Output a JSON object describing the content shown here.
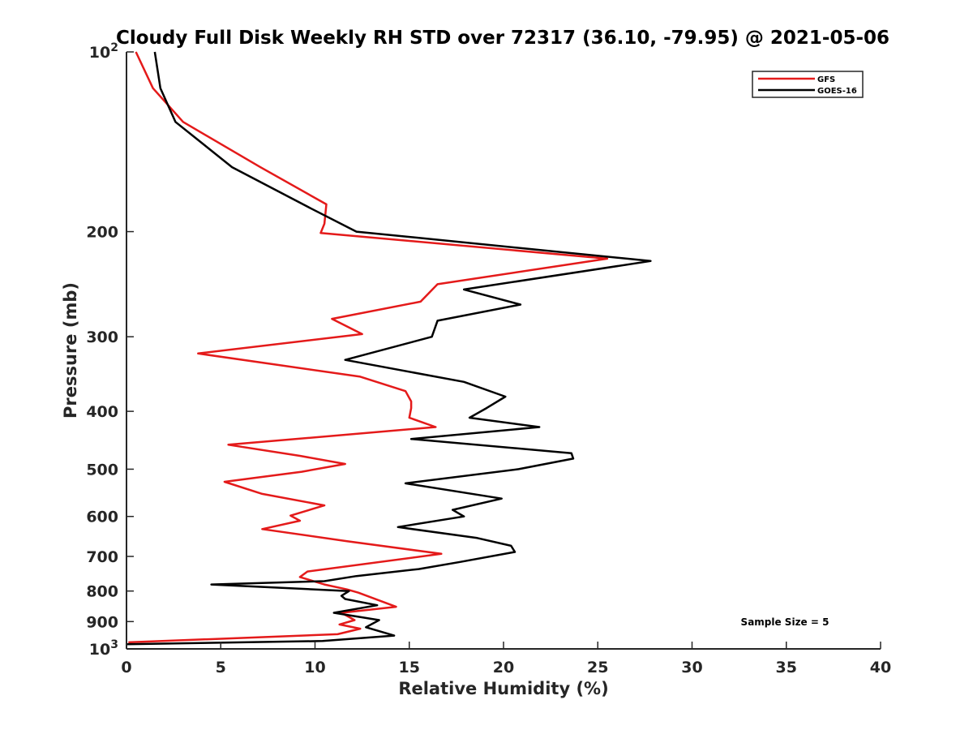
{
  "chart_data": {
    "type": "line",
    "title": "Cloudy Full Disk Weekly RH STD over 72317 (36.10, -79.95) @ 2021-05-06",
    "xlabel": "Relative Humidity (%)",
    "ylabel": "Pressure (mb)",
    "xlim": [
      0,
      40
    ],
    "ylim": [
      100,
      1000
    ],
    "y_scale": "log",
    "y_reversed": true,
    "grid": false,
    "legend_position": "top-right",
    "x_ticks": [
      "0",
      "5",
      "10",
      "15",
      "20",
      "25",
      "30",
      "35",
      "40"
    ],
    "y_ticks": [
      {
        "value": 100,
        "label": "10",
        "sup": "2"
      },
      {
        "value": 200,
        "label": "200"
      },
      {
        "value": 300,
        "label": "300"
      },
      {
        "value": 400,
        "label": "400"
      },
      {
        "value": 500,
        "label": "500"
      },
      {
        "value": 600,
        "label": "600"
      },
      {
        "value": 700,
        "label": "700"
      },
      {
        "value": 800,
        "label": "800"
      },
      {
        "value": 900,
        "label": "900"
      },
      {
        "value": 1000,
        "label": "10",
        "sup": "3"
      }
    ],
    "annotation": "Sample Size = 5",
    "series": [
      {
        "name": "GFS",
        "color": "#e41a1a",
        "x": [
          0.5,
          1.4,
          3.0,
          7.1,
          10.6,
          10.5,
          10.3,
          25.5,
          16.5,
          15.6,
          10.9,
          12.5,
          3.8,
          12.4,
          14.8,
          15.1,
          15.1,
          15.0,
          16.4,
          5.4,
          9.2,
          11.6,
          9.3,
          5.2,
          7.2,
          10.5,
          8.7,
          9.2,
          7.2,
          11.7,
          16.7,
          9.6,
          9.2,
          10.5,
          11.7,
          12.3,
          14.3,
          11.4,
          12.1,
          11.3,
          12.4,
          11.2,
          0.1
        ],
        "y": [
          100,
          115,
          131,
          156,
          180,
          194,
          201,
          222,
          245,
          262,
          280,
          297,
          320,
          350,
          370,
          385,
          395,
          410,
          425,
          455,
          475,
          490,
          505,
          525,
          550,
          575,
          598,
          610,
          630,
          660,
          693,
          742,
          758,
          780,
          795,
          805,
          850,
          870,
          895,
          910,
          925,
          945,
          975
        ]
      },
      {
        "name": "GOES-16",
        "color": "#000000",
        "x": [
          1.5,
          1.8,
          2.6,
          5.6,
          9.8,
          12.2,
          27.8,
          17.9,
          20.9,
          16.5,
          16.2,
          11.6,
          17.9,
          20.1,
          19.1,
          18.2,
          21.9,
          15.1,
          23.6,
          23.7,
          20.8,
          14.8,
          19.9,
          17.3,
          17.9,
          14.4,
          18.6,
          20.4,
          20.6,
          17.7,
          15.5,
          12.2,
          10.5,
          4.5,
          11.8,
          11.4,
          11.6,
          13.3,
          11.0,
          13.4,
          12.7,
          14.2,
          10.4,
          0.0
        ],
        "y": [
          100,
          115,
          131,
          156,
          183,
          200,
          224,
          250,
          265,
          282,
          300,
          328,
          357,
          378,
          395,
          410,
          425,
          445,
          470,
          480,
          500,
          528,
          560,
          585,
          600,
          625,
          652,
          672,
          688,
          715,
          735,
          755,
          770,
          780,
          800,
          815,
          825,
          845,
          870,
          895,
          920,
          950,
          970,
          982
        ]
      }
    ]
  }
}
